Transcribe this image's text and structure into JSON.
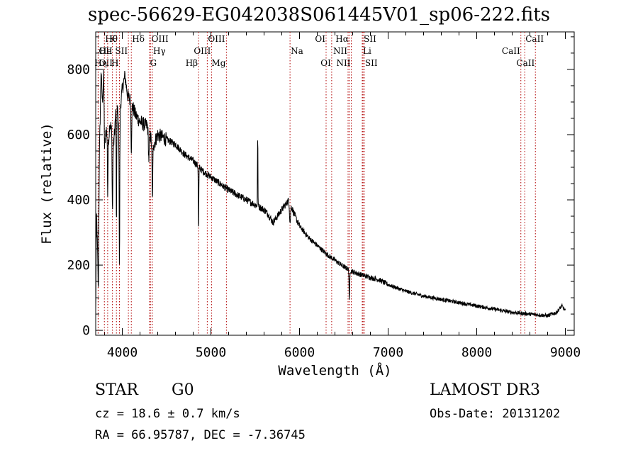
{
  "title": "spec-56629-EG042038S061445V01_sp06-222.fits",
  "chart_data": {
    "type": "line",
    "xlabel": "Wavelength (Å)",
    "ylabel": "Flux (relative)",
    "xlim": [
      3700,
      9100
    ],
    "ylim": [
      -15,
      915
    ],
    "x_ticks": [
      4000,
      5000,
      6000,
      7000,
      8000,
      9000
    ],
    "y_ticks": [
      0,
      200,
      400,
      600,
      800
    ],
    "grid": false,
    "series": [
      {
        "name": "flux",
        "continuum_points": [
          [
            3700,
            50
          ],
          [
            3710,
            350
          ],
          [
            3720,
            250
          ],
          [
            3730,
            120
          ],
          [
            3740,
            500
          ],
          [
            3750,
            650
          ],
          [
            3760,
            800
          ],
          [
            3775,
            700
          ],
          [
            3790,
            780
          ],
          [
            3800,
            560
          ],
          [
            3820,
            620
          ],
          [
            3840,
            560
          ],
          [
            3860,
            640
          ],
          [
            3880,
            610
          ],
          [
            3900,
            560
          ],
          [
            3920,
            640
          ],
          [
            3935,
            720
          ],
          [
            3950,
            660
          ],
          [
            3968,
            560
          ],
          [
            3980,
            690
          ],
          [
            4000,
            740
          ],
          [
            4030,
            780
          ],
          [
            4060,
            720
          ],
          [
            4100,
            700
          ],
          [
            4150,
            660
          ],
          [
            4200,
            640
          ],
          [
            4250,
            630
          ],
          [
            4300,
            625
          ],
          [
            4340,
            560
          ],
          [
            4400,
            600
          ],
          [
            4500,
            585
          ],
          [
            4600,
            570
          ],
          [
            4700,
            540
          ],
          [
            4800,
            520
          ],
          [
            4900,
            490
          ],
          [
            5000,
            470
          ],
          [
            5100,
            450
          ],
          [
            5200,
            430
          ],
          [
            5300,
            415
          ],
          [
            5400,
            400
          ],
          [
            5500,
            385
          ],
          [
            5600,
            370
          ],
          [
            5650,
            355
          ],
          [
            5700,
            330
          ],
          [
            5800,
            370
          ],
          [
            5880,
            400
          ],
          [
            5950,
            350
          ],
          [
            6000,
            320
          ],
          [
            6100,
            285
          ],
          [
            6200,
            260
          ],
          [
            6300,
            235
          ],
          [
            6400,
            215
          ],
          [
            6500,
            195
          ],
          [
            6600,
            180
          ],
          [
            6700,
            170
          ],
          [
            6800,
            162
          ],
          [
            6900,
            155
          ],
          [
            7000,
            140
          ],
          [
            7200,
            120
          ],
          [
            7400,
            105
          ],
          [
            7600,
            95
          ],
          [
            7800,
            85
          ],
          [
            8000,
            75
          ],
          [
            8200,
            65
          ],
          [
            8400,
            55
          ],
          [
            8600,
            50
          ],
          [
            8800,
            45
          ],
          [
            8900,
            55
          ],
          [
            8960,
            75
          ],
          [
            9000,
            60
          ]
        ],
        "features": [
          {
            "wave": 3934,
            "depth": -420,
            "width": 4
          },
          {
            "wave": 3968,
            "depth": -380,
            "width": 4
          },
          {
            "wave": 3889,
            "depth": -220,
            "width": 5
          },
          {
            "wave": 3835,
            "depth": -160,
            "width": 4
          },
          {
            "wave": 4102,
            "depth": -140,
            "width": 6
          },
          {
            "wave": 4300,
            "depth": -100,
            "width": 8
          },
          {
            "wave": 4340,
            "depth": -160,
            "width": 6
          },
          {
            "wave": 4861,
            "depth": -200,
            "width": 4
          },
          {
            "wave": 5528,
            "depth": 350,
            "width": 3
          },
          {
            "wave": 5528,
            "depth": -150,
            "width": 2
          },
          {
            "wave": 6563,
            "depth": -100,
            "width": 5
          },
          {
            "wave": 5893,
            "depth": -60,
            "width": 8
          }
        ]
      }
    ],
    "annotations": [
      {
        "label": "Hθ",
        "x": 3798,
        "row": 0,
        "side": "right"
      },
      {
        "label": "OII",
        "x": 3727,
        "row": 1,
        "side": "right"
      },
      {
        "label": "OII",
        "x": 3729,
        "row": 2,
        "side": "right"
      },
      {
        "label": "K",
        "x": 3934,
        "row": 0,
        "side": "left"
      },
      {
        "label": "He",
        "x": 3889,
        "row": 1,
        "side": "left"
      },
      {
        "label": "Hη",
        "x": 3835,
        "row": 2,
        "side": "left"
      },
      {
        "label": "SII",
        "x": 4069,
        "row": 1,
        "side": "left"
      },
      {
        "label": "H",
        "x": 3968,
        "row": 2,
        "side": "left"
      },
      {
        "label": "Hδ",
        "x": 4102,
        "row": 0,
        "side": "right"
      },
      {
        "label": "OIII",
        "x": 4321,
        "row": 0,
        "side": "right"
      },
      {
        "label": "Hγ",
        "x": 4340,
        "row": 1,
        "side": "right"
      },
      {
        "label": "G",
        "x": 4304,
        "row": 2,
        "side": "right"
      },
      {
        "label": "Hβ",
        "x": 4861,
        "row": 2,
        "side": "left"
      },
      {
        "label": "OIII",
        "x": 4959,
        "row": 0,
        "side": "right"
      },
      {
        "label": "OIII",
        "x": 5007,
        "row": 1,
        "side": "left"
      },
      {
        "label": "Mg",
        "x": 5175,
        "row": 2,
        "side": "left"
      },
      {
        "label": "Na",
        "x": 5893,
        "row": 1,
        "side": "right"
      },
      {
        "label": "OI",
        "x": 6300,
        "row": 0,
        "side": "left"
      },
      {
        "label": "OI",
        "x": 6363,
        "row": 2,
        "side": "left"
      },
      {
        "label": "Hα",
        "x": 6563,
        "row": 0,
        "side": "left"
      },
      {
        "label": "NII",
        "x": 6548,
        "row": 1,
        "side": "left"
      },
      {
        "label": "NII",
        "x": 6584,
        "row": 2,
        "side": "left"
      },
      {
        "label": "SII",
        "x": 6717,
        "row": 0,
        "side": "right"
      },
      {
        "label": "Li",
        "x": 6708,
        "row": 1,
        "side": "right"
      },
      {
        "label": "SII",
        "x": 6731,
        "row": 2,
        "side": "right"
      },
      {
        "label": "CaII",
        "x": 8542,
        "row": 0,
        "side": "right"
      },
      {
        "label": "CaII",
        "x": 8498,
        "row": 1,
        "side": "left"
      },
      {
        "label": "CaII",
        "x": 8662,
        "row": 2,
        "side": "left"
      }
    ]
  },
  "info": {
    "object_class": "STAR",
    "subclass": "G0",
    "survey": "LAMOST DR3",
    "cz": "cz = 18.6 ± 0.7 km/s",
    "obs_date": "Obs-Date: 20131202",
    "coords": "RA =  66.95787, DEC =  -7.36745"
  }
}
